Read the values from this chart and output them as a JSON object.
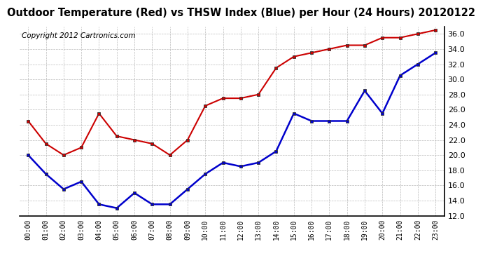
{
  "title": "Outdoor Temperature (Red) vs THSW Index (Blue) per Hour (24 Hours) 20120122",
  "copyright_text": "Copyright 2012 Cartronics.com",
  "hours": [
    "00:00",
    "01:00",
    "02:00",
    "03:00",
    "04:00",
    "05:00",
    "06:00",
    "07:00",
    "08:00",
    "09:00",
    "10:00",
    "11:00",
    "12:00",
    "13:00",
    "14:00",
    "15:00",
    "16:00",
    "17:00",
    "18:00",
    "19:00",
    "20:00",
    "21:00",
    "22:00",
    "23:00"
  ],
  "red_temp": [
    24.5,
    21.5,
    20.0,
    21.0,
    25.5,
    22.5,
    22.0,
    21.5,
    20.0,
    22.0,
    26.5,
    27.5,
    27.5,
    28.0,
    31.5,
    33.0,
    33.5,
    34.0,
    34.5,
    34.5,
    35.5,
    35.5,
    36.0,
    36.5
  ],
  "blue_thsw": [
    20.0,
    17.5,
    15.5,
    16.5,
    13.5,
    13.0,
    15.0,
    13.5,
    13.5,
    15.5,
    17.5,
    19.0,
    18.5,
    19.0,
    20.5,
    25.5,
    24.5,
    24.5,
    24.5,
    28.5,
    25.5,
    30.5,
    32.0,
    33.5
  ],
  "ylim": [
    12.0,
    37.0
  ],
  "yticks": [
    12.0,
    14.0,
    16.0,
    18.0,
    20.0,
    22.0,
    24.0,
    26.0,
    28.0,
    30.0,
    32.0,
    34.0,
    36.0
  ],
  "red_color": "#cc0000",
  "blue_color": "#0000cc",
  "bg_color": "#ffffff",
  "grid_color": "#bbbbbb",
  "title_fontsize": 10.5,
  "copyright_fontsize": 7.5
}
